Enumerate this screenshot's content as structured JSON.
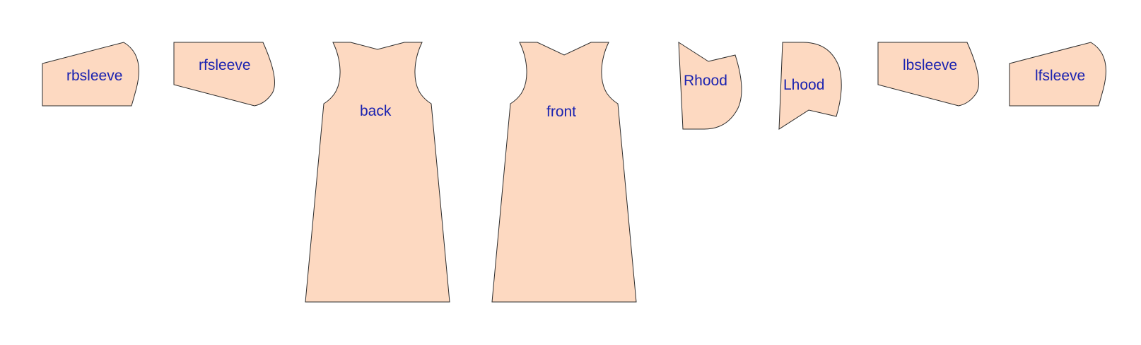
{
  "pieces": {
    "rbsleeve": "rbsleeve",
    "rfsleeve": "rfsleeve",
    "back": "back",
    "front": "front",
    "rhood": "Rhood",
    "lhood": "Lhood",
    "lbsleeve": "lbsleeve",
    "lfsleeve": "lfsleeve"
  },
  "colors": {
    "piece_fill": "#fdd9c1",
    "outline": "#2b2b2b",
    "label": "#1a22b0"
  }
}
